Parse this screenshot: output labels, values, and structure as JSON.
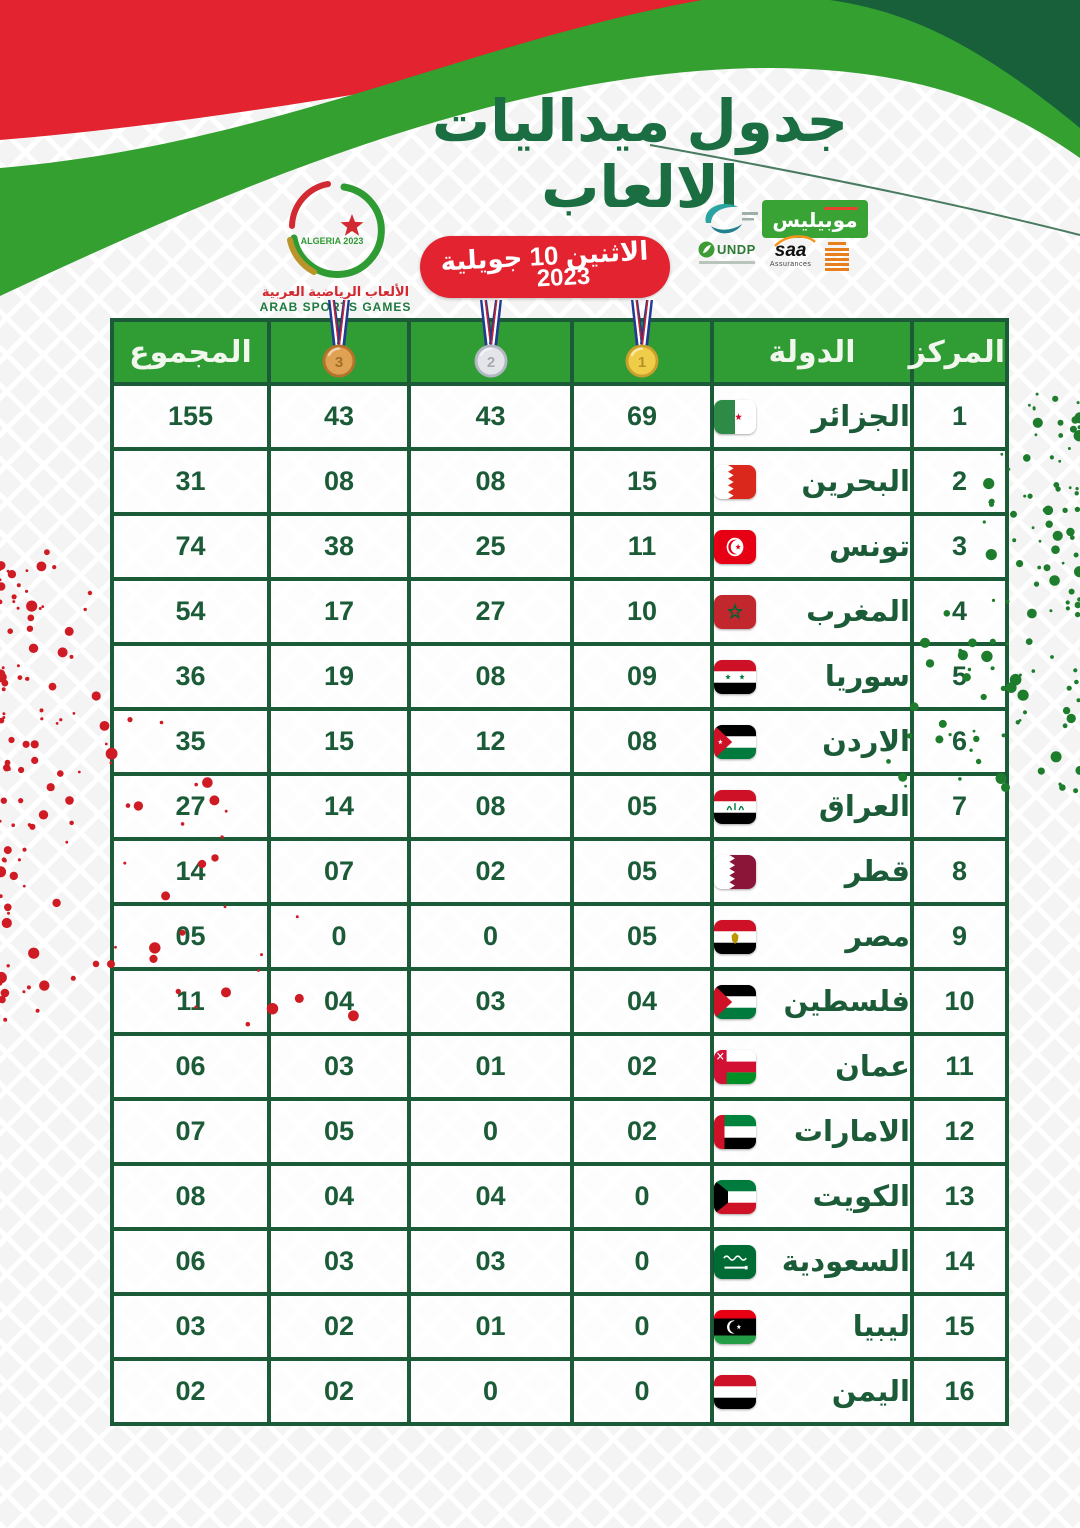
{
  "page_title": "جدول ميداليات الالعاب",
  "header": {
    "title_line1": "جدول ميداليات",
    "title_line2": "الالعاب",
    "date_line": "الاثنين 10 جويلية",
    "date_year": "2023",
    "asg_logo": {
      "inner": "ALGERIA 2023",
      "arabic": "الألعاب الرياضية العربية",
      "english": "ARAB SPORTS GAMES"
    },
    "sponsors": {
      "mobilis": "موبيليس",
      "undp": "UNDP",
      "saa": "saa",
      "saa_sub": "Assurances"
    }
  },
  "table": {
    "col_rank": "المركز",
    "col_country": "الدولة",
    "col_total": "المجموع",
    "medal_cols": [
      "gold-medal-icon",
      "silver-medal-icon",
      "bronze-medal-icon"
    ]
  },
  "chart_data": {
    "type": "table",
    "title": "جدول ميداليات الالعاب",
    "date": "الاثنين 10 جويلية 2023",
    "columns_rtl": [
      "المركز",
      "الدولة",
      "gold-medal",
      "silver-medal",
      "bronze-medal",
      "المجموع"
    ],
    "rows": [
      {
        "rank": "1",
        "country": "الجزائر",
        "flag": "dz",
        "gold": "69",
        "silver": "43",
        "bronze": "43",
        "total": "155"
      },
      {
        "rank": "2",
        "country": "البحرين",
        "flag": "bh",
        "gold": "15",
        "silver": "08",
        "bronze": "08",
        "total": "31"
      },
      {
        "rank": "3",
        "country": "تونس",
        "flag": "tn",
        "gold": "11",
        "silver": "25",
        "bronze": "38",
        "total": "74"
      },
      {
        "rank": "4",
        "country": "المغرب",
        "flag": "ma",
        "gold": "10",
        "silver": "27",
        "bronze": "17",
        "total": "54"
      },
      {
        "rank": "5",
        "country": "سوريا",
        "flag": "sy",
        "gold": "09",
        "silver": "08",
        "bronze": "19",
        "total": "36"
      },
      {
        "rank": "6",
        "country": "الاردن",
        "flag": "jo",
        "gold": "08",
        "silver": "12",
        "bronze": "15",
        "total": "35"
      },
      {
        "rank": "7",
        "country": "العراق",
        "flag": "iq",
        "gold": "05",
        "silver": "08",
        "bronze": "14",
        "total": "27"
      },
      {
        "rank": "8",
        "country": "قطر",
        "flag": "qa",
        "gold": "05",
        "silver": "02",
        "bronze": "07",
        "total": "14"
      },
      {
        "rank": "9",
        "country": "مصر",
        "flag": "eg",
        "gold": "05",
        "silver": "0",
        "bronze": "0",
        "total": "05"
      },
      {
        "rank": "10",
        "country": "فلسطين",
        "flag": "ps",
        "gold": "04",
        "silver": "03",
        "bronze": "04",
        "total": "11"
      },
      {
        "rank": "11",
        "country": "عمان",
        "flag": "om",
        "gold": "02",
        "silver": "01",
        "bronze": "03",
        "total": "06"
      },
      {
        "rank": "12",
        "country": "الامارات",
        "flag": "ae",
        "gold": "02",
        "silver": "0",
        "bronze": "05",
        "total": "07"
      },
      {
        "rank": "13",
        "country": "الكويت",
        "flag": "kw",
        "gold": "0",
        "silver": "04",
        "bronze": "04",
        "total": "08"
      },
      {
        "rank": "14",
        "country": "السعودية",
        "flag": "sa",
        "gold": "0",
        "silver": "03",
        "bronze": "03",
        "total": "06"
      },
      {
        "rank": "15",
        "country": "ليبيا",
        "flag": "ly",
        "gold": "0",
        "silver": "01",
        "bronze": "02",
        "total": "03"
      },
      {
        "rank": "16",
        "country": "اليمن",
        "flag": "ye",
        "gold": "0",
        "silver": "0",
        "bronze": "02",
        "total": "02"
      }
    ]
  },
  "colors": {
    "red": "#e32330",
    "dark_green": "#17603a",
    "band_green": "#33a02f",
    "header_green": "#2f9c34",
    "border_green": "#1b5b38",
    "text_green": "#1c5b38",
    "gold": "#e8c23a",
    "silver": "#d9dbe2",
    "bronze": "#d6963a"
  }
}
